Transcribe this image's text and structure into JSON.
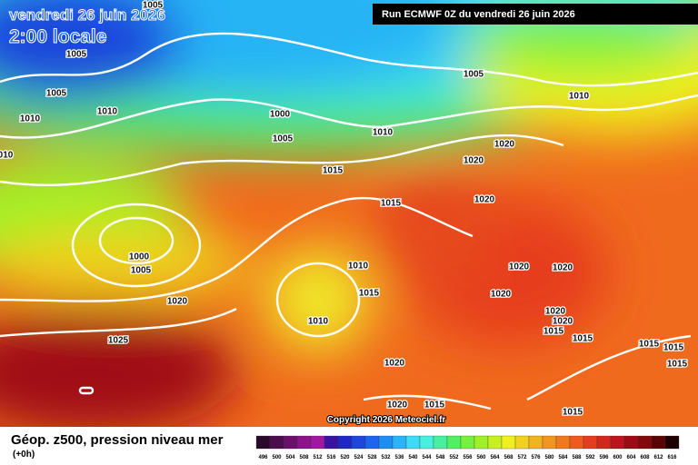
{
  "header": {
    "date": "vendredi 26 juin 2026",
    "time": "2:00 locale",
    "run": "Run ECMWF 0Z du vendredi 26 juin 2026"
  },
  "map": {
    "copyright": "Copyright 2026 Meteociel.fr",
    "isobar_labels": [
      "1005",
      "1005",
      "1005",
      "1010",
      "1010",
      "010",
      "1000",
      "1005",
      "1005",
      "1010",
      "1010",
      "1015",
      "1020",
      "1020",
      "1020",
      "1015",
      "1000",
      "1005",
      "1010",
      "1015",
      "1020",
      "1020",
      "1020",
      "1010",
      "1020",
      "1020",
      "1020",
      "1015",
      "1015",
      "1015",
      "1015",
      "1015",
      "1025",
      "1020",
      "1020",
      "1015",
      "1015"
    ]
  },
  "footer": {
    "title": "Géop. z500, pression niveau mer",
    "lead": "(+0h)"
  },
  "colorbar": {
    "ticks": [
      496,
      500,
      504,
      508,
      512,
      516,
      520,
      524,
      528,
      532,
      536,
      540,
      544,
      548,
      552,
      556,
      560,
      564,
      568,
      572,
      576,
      580,
      584,
      588,
      592,
      596,
      600,
      604,
      608,
      612,
      616
    ],
    "colors": [
      "#2a0a2a",
      "#4b0d4b",
      "#6a0f6a",
      "#8a148a",
      "#a018a0",
      "#3a14a0",
      "#1e28c8",
      "#1e46dc",
      "#1e64f0",
      "#1e8cf5",
      "#28b4f5",
      "#3cdcf5",
      "#46f0dc",
      "#46f0a0",
      "#50f064",
      "#78f03c",
      "#a0f028",
      "#c8f01e",
      "#f0f01e",
      "#f0d21e",
      "#f0b41e",
      "#f0961e",
      "#f0781e",
      "#f05a1e",
      "#e63c1e",
      "#d2281e",
      "#be141e",
      "#a00a14",
      "#820a0a",
      "#5a0505",
      "#1e0000"
    ]
  }
}
